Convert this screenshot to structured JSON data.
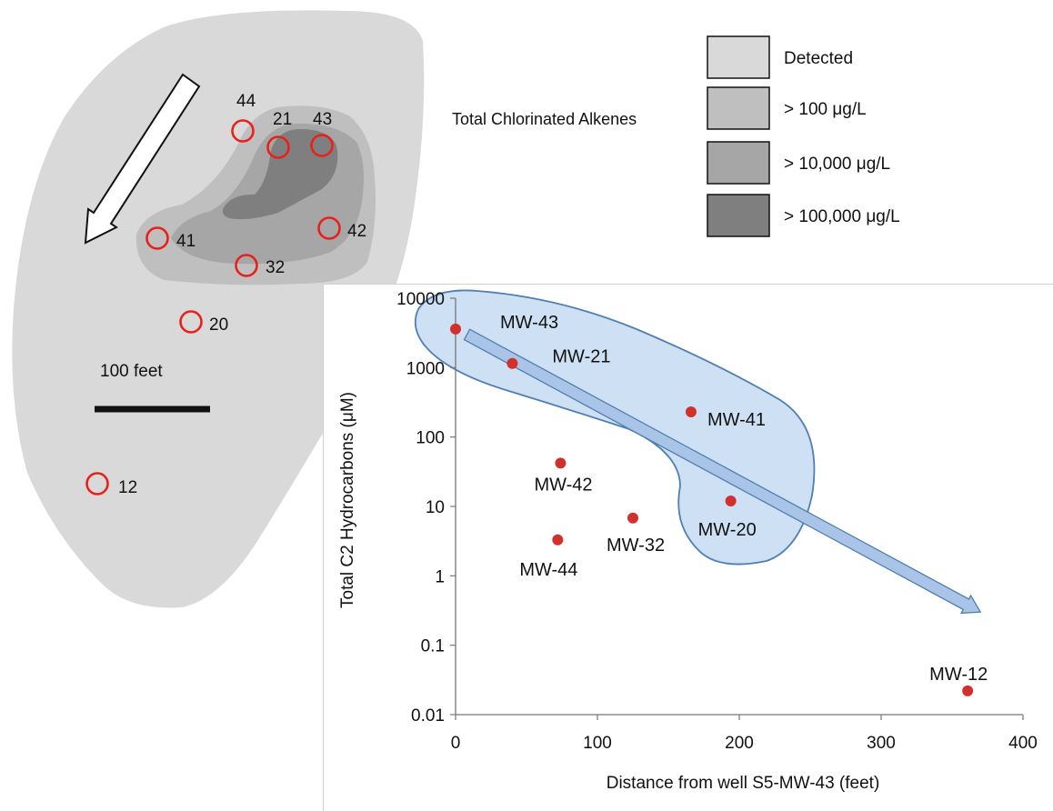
{
  "map": {
    "well_labels": [
      "44",
      "21",
      "43",
      "41",
      "42",
      "32",
      "20",
      "12"
    ],
    "scale_label": "100 feet",
    "well_marker_color": "#e8201a",
    "plume_colors": [
      "#d9d9d9",
      "#bfbfbf",
      "#a6a6a6",
      "#7f7f7f"
    ]
  },
  "legend": {
    "title": "Total Chlorinated Alkenes",
    "entries": [
      {
        "label": "Detected",
        "color": "#d9d9d9"
      },
      {
        "label": "> 100 μg/L",
        "color": "#bfbfbf"
      },
      {
        "label": "> 10,000 μg/L",
        "color": "#a6a6a6"
      },
      {
        "label": "> 100,000 μg/L",
        "color": "#7f7f7f"
      }
    ]
  },
  "chart_data": {
    "type": "scatter",
    "title": "",
    "xlabel": "Distance from  well S5-MW-43 (feet)",
    "ylabel": "Total  C2  Hydrocarbons  (μM)",
    "xlim": [
      0,
      400
    ],
    "ylim": [
      0.01,
      10000
    ],
    "yscale": "log",
    "x_ticks": [
      "0",
      "100",
      "200",
      "300",
      "400"
    ],
    "y_ticks": [
      "0.01",
      "0.1",
      "1",
      "10",
      "100",
      "1000",
      "10000"
    ],
    "grid": false,
    "legend": "none",
    "marker_color": "#d0312d",
    "trend_arrow": {
      "from": [
        8,
        3000
      ],
      "to": [
        370,
        0.3
      ],
      "color": "#a9c4e6"
    },
    "points": [
      {
        "label": "MW-43",
        "x": 0,
        "y": 3600
      },
      {
        "label": "MW-21",
        "x": 40,
        "y": 1150
      },
      {
        "label": "MW-41",
        "x": 166,
        "y": 230
      },
      {
        "label": "MW-42",
        "x": 74,
        "y": 42
      },
      {
        "label": "MW-20",
        "x": 194,
        "y": 12
      },
      {
        "label": "MW-32",
        "x": 125,
        "y": 6.8
      },
      {
        "label": "MW-44",
        "x": 72,
        "y": 3.3
      },
      {
        "label": "MW-12",
        "x": 361,
        "y": 0.022
      }
    ]
  }
}
